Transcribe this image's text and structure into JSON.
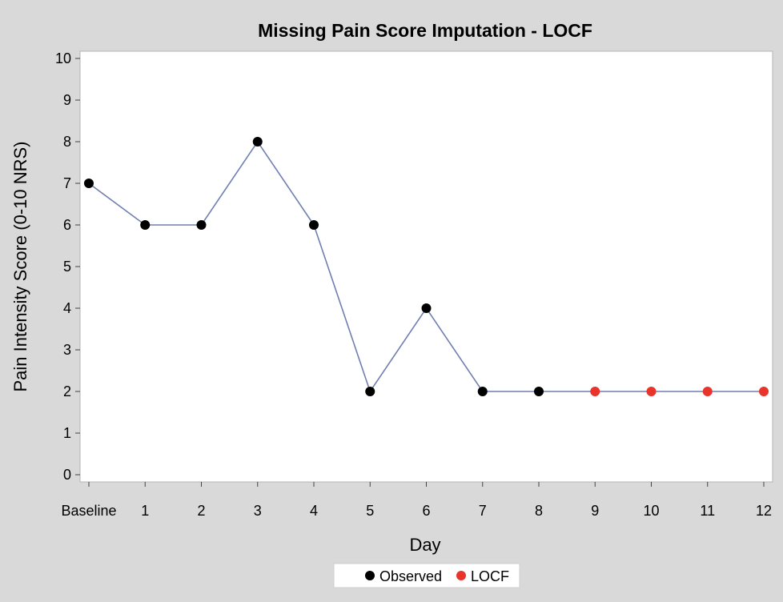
{
  "chart_data": {
    "type": "line",
    "title": "Missing Pain Score Imputation - LOCF",
    "xlabel": "Day",
    "ylabel": "Pain Intensity Score (0-10 NRS)",
    "categories": [
      "Baseline",
      "1",
      "2",
      "3",
      "4",
      "5",
      "6",
      "7",
      "8",
      "9",
      "10",
      "11",
      "12"
    ],
    "values": [
      7,
      6,
      6,
      8,
      6,
      2,
      4,
      2,
      2,
      2,
      2,
      2,
      2
    ],
    "point_type": [
      "Observed",
      "Observed",
      "Observed",
      "Observed",
      "Observed",
      "Observed",
      "Observed",
      "Observed",
      "Observed",
      "LOCF",
      "LOCF",
      "LOCF",
      "LOCF"
    ],
    "ylim": [
      0,
      10
    ],
    "yticks": [
      0,
      1,
      2,
      3,
      4,
      5,
      6,
      7,
      8,
      9,
      10
    ],
    "grid": false,
    "legend": {
      "placement": "bottom-center",
      "entries": [
        {
          "name": "Observed",
          "color": "#000000"
        },
        {
          "name": "LOCF",
          "color": "#e8342a"
        }
      ]
    },
    "line_color": "#6f7fb0"
  }
}
